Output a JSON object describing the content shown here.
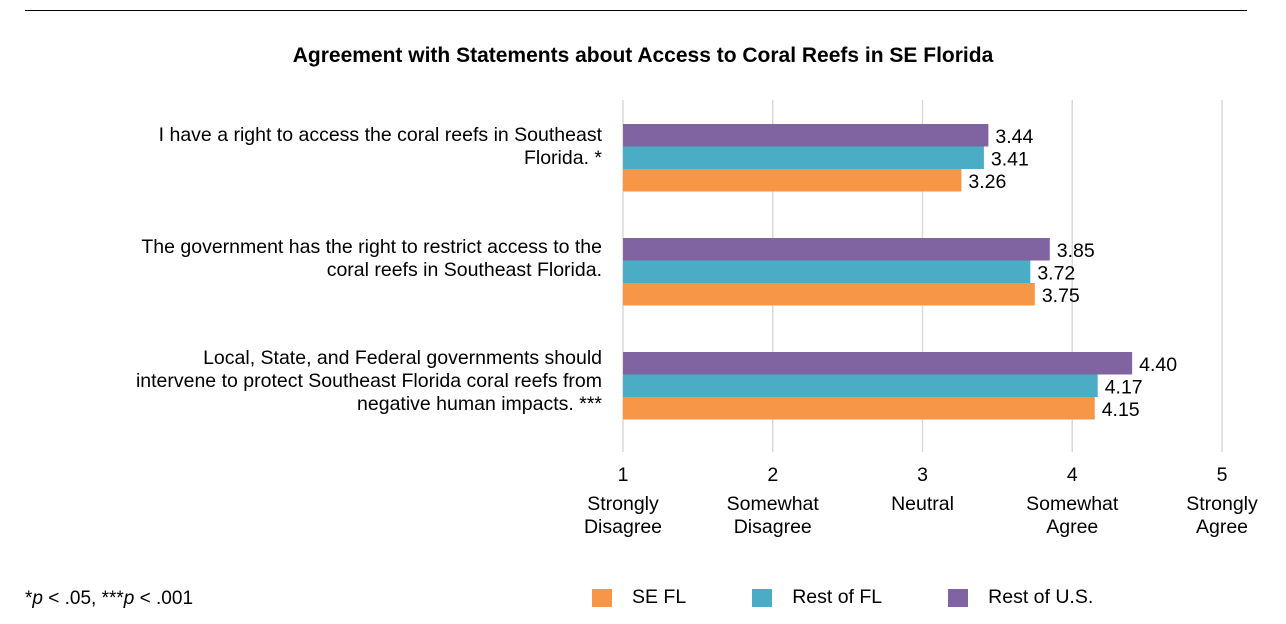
{
  "chart_data": {
    "type": "bar",
    "orientation": "horizontal",
    "title": "Agreement with Statements about Access to Coral Reefs in SE Florida",
    "categories": [
      "I have a right to access the coral reefs in Southeast Florida. *",
      "The government has the right to restrict access to the coral reefs in Southeast Florida.",
      "Local, State, and Federal governments should intervene to protect Southeast Florida coral reefs from negative human impacts. ***"
    ],
    "category_lines": [
      [
        "I have a right to access the coral reefs in Southeast",
        "Florida. *"
      ],
      [
        "The government has the right to restrict access to the",
        "coral reefs in Southeast Florida."
      ],
      [
        "Local, State, and Federal governments should",
        "intervene to protect Southeast Florida coral reefs from",
        "negative human impacts. ***"
      ]
    ],
    "series": [
      {
        "name": "SE FL",
        "color": "#F79646",
        "values": [
          3.26,
          3.75,
          4.15
        ],
        "labels": [
          "3.26",
          "3.75",
          "4.15"
        ]
      },
      {
        "name": "Rest of FL",
        "color": "#4BACC6",
        "values": [
          3.41,
          3.72,
          4.17
        ],
        "labels": [
          "3.41",
          "3.72",
          "4.17"
        ]
      },
      {
        "name": "Rest of U.S.",
        "color": "#8064A2",
        "values": [
          3.44,
          3.85,
          4.4
        ],
        "labels": [
          "3.44",
          "3.85",
          "4.40"
        ]
      }
    ],
    "xlim": [
      1,
      5
    ],
    "ticks": [
      {
        "value": 1,
        "number": "1",
        "lines": [
          "Strongly",
          "Disagree"
        ]
      },
      {
        "value": 2,
        "number": "2",
        "lines": [
          "Somewhat",
          "Disagree"
        ]
      },
      {
        "value": 3,
        "number": "3",
        "lines": [
          "Neutral"
        ]
      },
      {
        "value": 4,
        "number": "4",
        "lines": [
          "Somewhat",
          "Agree"
        ]
      },
      {
        "value": 5,
        "number": "5",
        "lines": [
          "Strongly",
          "Agree"
        ]
      }
    ],
    "grid": true,
    "legend_position": "bottom-right"
  },
  "footnote": {
    "p1": "p",
    "part1": " < .05, ***",
    "p2": "p",
    "part2": " < .001",
    "star": "*"
  },
  "colors": {
    "grid": "#D9D9D9"
  }
}
